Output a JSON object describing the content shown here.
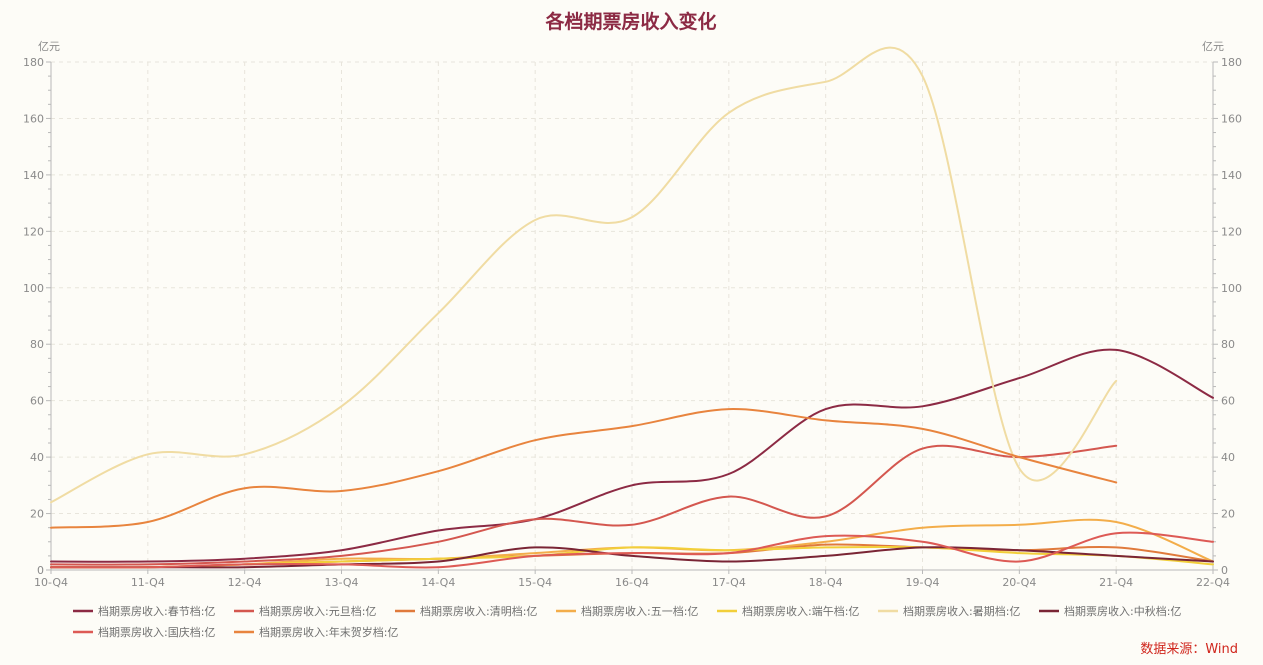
{
  "chart_data": {
    "type": "line",
    "title": "各档期票房收入变化",
    "ylabel_left": "亿元",
    "ylabel_right": "亿元",
    "x": [
      "10-Q4",
      "11-Q4",
      "12-Q4",
      "13-Q4",
      "14-Q4",
      "15-Q4",
      "16-Q4",
      "17-Q4",
      "18-Q4",
      "19-Q4",
      "20-Q4",
      "21-Q4",
      "22-Q4"
    ],
    "ylim": [
      0,
      180
    ],
    "yticks": [
      0,
      20,
      40,
      60,
      80,
      100,
      120,
      140,
      160,
      180
    ],
    "grid": true,
    "smooth": true,
    "legend_position": "bottom",
    "series": [
      {
        "name": "档期票房收入:春节档:亿",
        "color": "#8c2a44",
        "values": [
          3,
          3,
          4,
          7,
          14,
          18,
          30,
          34,
          57,
          58,
          68,
          78,
          61
        ]
      },
      {
        "name": "档期票房收入:元旦档:亿",
        "color": "#d4574f",
        "values": [
          2,
          2,
          3,
          5,
          10,
          18,
          16,
          26,
          19,
          43,
          40,
          44,
          null
        ]
      },
      {
        "name": "档期票房收入:清明档:亿",
        "color": "#e07a3c",
        "values": [
          1,
          1,
          2,
          3,
          4,
          5,
          6,
          6,
          9,
          8,
          7,
          8,
          3
        ]
      },
      {
        "name": "档期票房收入:五一档:亿",
        "color": "#f3ad4a",
        "values": [
          1,
          1,
          2,
          4,
          4,
          6,
          8,
          7,
          10,
          15,
          16,
          17,
          3
        ]
      },
      {
        "name": "档期票房收入:端午档:亿",
        "color": "#f2cf3a",
        "values": [
          1,
          1,
          2,
          3,
          4,
          5,
          8,
          7,
          8,
          8,
          6,
          5,
          2
        ]
      },
      {
        "name": "档期票房收入:暑期档:亿",
        "color": "#f0dca3",
        "values": [
          24,
          41,
          41,
          58,
          91,
          124,
          125,
          162,
          173,
          175,
          36,
          67,
          null
        ]
      },
      {
        "name": "档期票房收入:中秋档:亿",
        "color": "#7a2535",
        "values": [
          1,
          1,
          1,
          2,
          3,
          8,
          5,
          3,
          5,
          8,
          7,
          5,
          3
        ]
      },
      {
        "name": "档期票房收入:国庆档:亿",
        "color": "#dd5a55",
        "values": [
          1,
          1,
          2,
          2,
          1,
          5,
          6,
          6,
          12,
          10,
          3,
          13,
          10
        ]
      },
      {
        "name": "档期票房收入:年末贺岁档:亿",
        "color": "#e8843e",
        "values": [
          15,
          17,
          29,
          28,
          35,
          46,
          51,
          57,
          53,
          50,
          40,
          31,
          null
        ]
      }
    ]
  },
  "source": "数据来源：Wind"
}
